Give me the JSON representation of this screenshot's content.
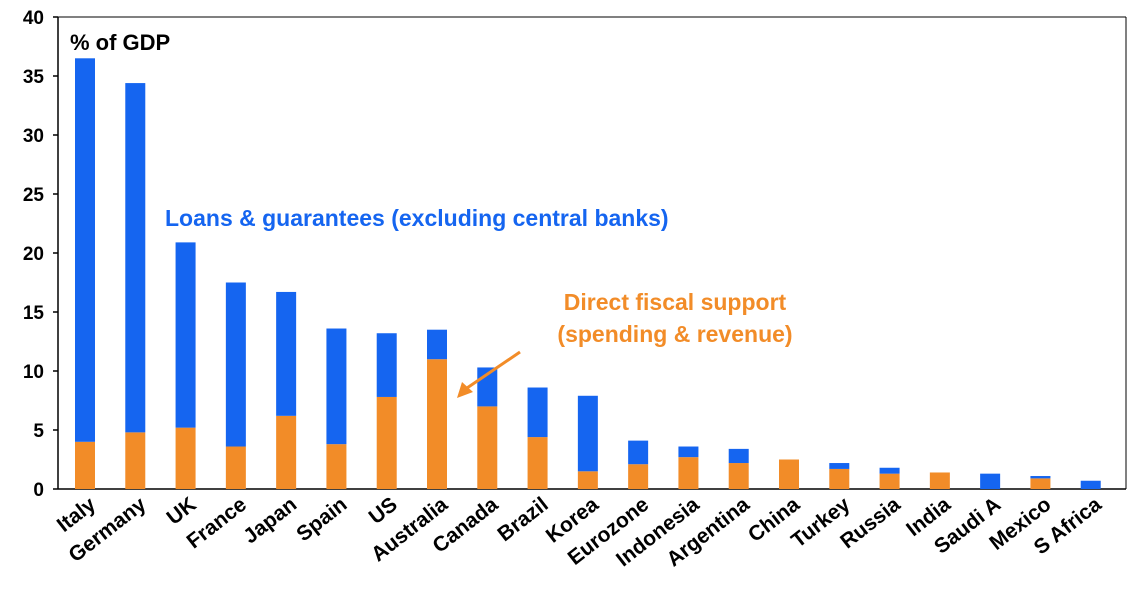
{
  "chart_data": {
    "type": "bar",
    "stacked": true,
    "unit_label": "% of GDP",
    "categories": [
      "Italy",
      "Germany",
      "UK",
      "France",
      "Japan",
      "Spain",
      "US",
      "Australia",
      "Canada",
      "Brazil",
      "Korea",
      "Eurozone",
      "Indonesia",
      "Argentina",
      "China",
      "Turkey",
      "Russia",
      "India",
      "Saudi A",
      "Mexico",
      "S Africa"
    ],
    "series": [
      {
        "name": "Direct fiscal support (spending & revenue)",
        "label_lines": [
          "Direct fiscal support",
          "(spending & revenue)"
        ],
        "color": "#f28c28",
        "values": [
          4.0,
          4.8,
          5.2,
          3.6,
          6.2,
          3.8,
          7.8,
          11.0,
          7.0,
          4.4,
          1.5,
          2.1,
          2.7,
          2.2,
          2.5,
          1.7,
          1.3,
          1.4,
          0,
          0.9,
          0
        ]
      },
      {
        "name": "Loans & guarantees (excluding central banks)",
        "color": "#1565f0",
        "values": [
          32.5,
          29.6,
          15.7,
          13.9,
          10.5,
          9.8,
          5.4,
          2.5,
          3.3,
          4.2,
          6.4,
          2.0,
          0.9,
          1.2,
          0,
          0.5,
          0.5,
          0,
          1.3,
          0.2,
          0.7
        ]
      }
    ],
    "ylim": [
      0,
      40
    ],
    "yticks": [
      "0",
      "5",
      "10",
      "15",
      "20",
      "25",
      "30",
      "35",
      "40"
    ],
    "grid": false,
    "legend": "inline annotations"
  }
}
